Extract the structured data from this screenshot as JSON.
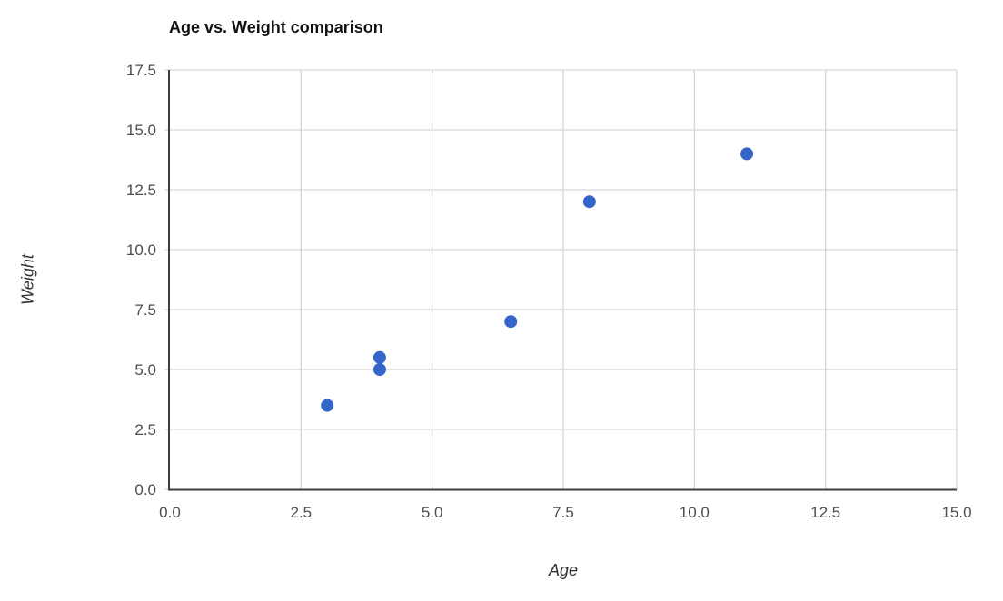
{
  "chart_data": {
    "type": "scatter",
    "title": "Age vs. Weight comparison",
    "xlabel": "Age",
    "ylabel": "Weight",
    "points": [
      {
        "x": 3,
        "y": 3.5
      },
      {
        "x": 4,
        "y": 5
      },
      {
        "x": 4,
        "y": 5.5
      },
      {
        "x": 6.5,
        "y": 7
      },
      {
        "x": 8,
        "y": 12
      },
      {
        "x": 11,
        "y": 14
      }
    ],
    "xlim": [
      0,
      15
    ],
    "ylim": [
      0,
      17.5
    ],
    "xtick_values": [
      0,
      2.5,
      5,
      7.5,
      10,
      12.5,
      15
    ],
    "xtick_labels": [
      "0.0",
      "2.5",
      "5.0",
      "7.5",
      "10.0",
      "12.5",
      "15.0"
    ],
    "ytick_values": [
      0,
      2.5,
      5,
      7.5,
      10,
      12.5,
      15,
      17.5
    ],
    "ytick_labels": [
      "0.0",
      "2.5",
      "5.0",
      "7.5",
      "10.0",
      "12.5",
      "15.0",
      "17.5"
    ],
    "grid": true,
    "legend_position": "none",
    "colors": {
      "marker": "#3465C8",
      "grid": "#d6d6d6",
      "axis": "#3d3d3d",
      "tick_label": "#4d4d4d",
      "axis_label": "#333333",
      "title": "#111111",
      "background": "#ffffff"
    }
  }
}
